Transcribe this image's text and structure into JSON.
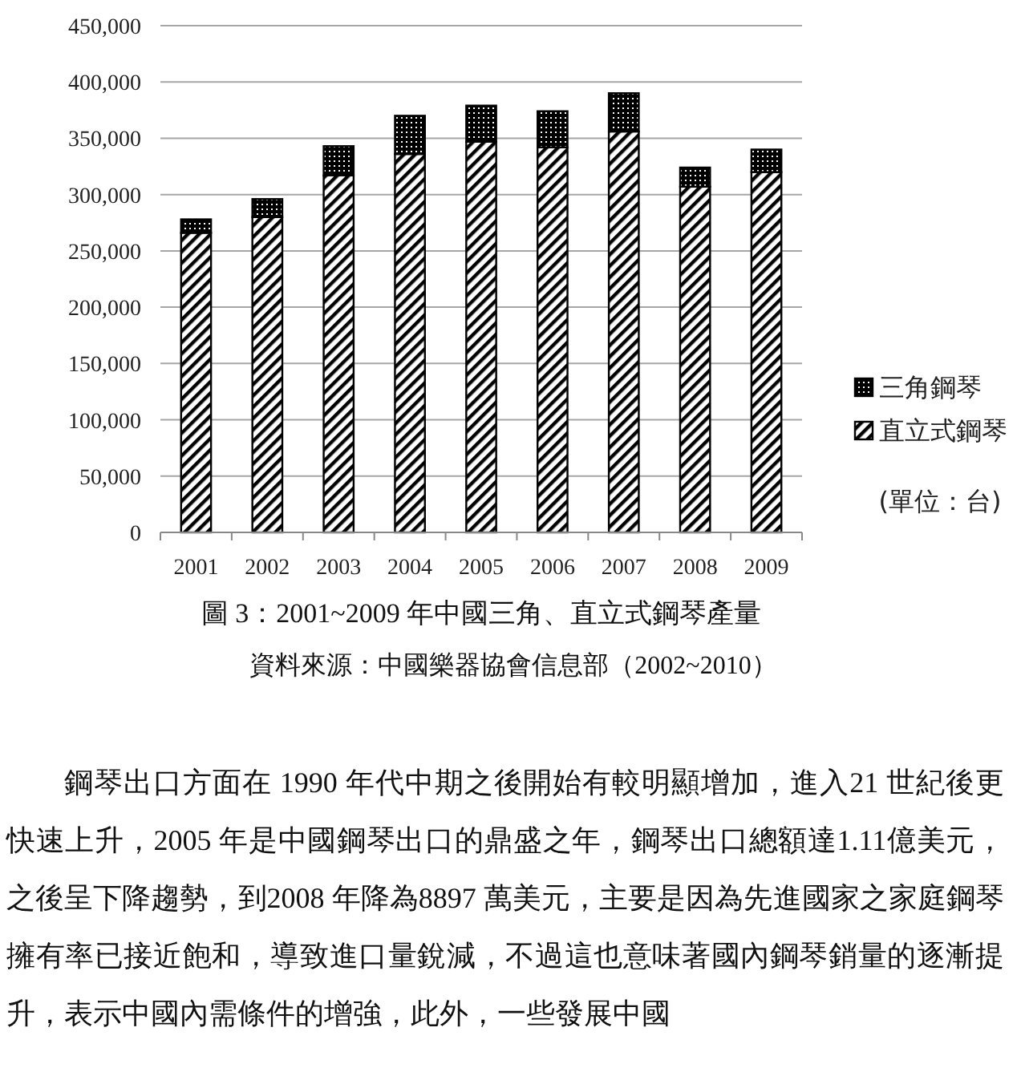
{
  "chart_data": {
    "type": "bar",
    "stacked": true,
    "title": "圖 3：2001~2009 年中國三角、直立式鋼琴產量",
    "categories": [
      "2001",
      "2002",
      "2003",
      "2004",
      "2005",
      "2006",
      "2007",
      "2008",
      "2009"
    ],
    "series": [
      {
        "name": "直立式鋼琴",
        "color": "#000000",
        "values": [
          266000,
          280000,
          317000,
          336000,
          347000,
          342000,
          356000,
          307000,
          320000
        ]
      },
      {
        "name": "三角鋼琴",
        "color": "#000000",
        "values": [
          12000,
          16000,
          26000,
          34000,
          32000,
          32000,
          34000,
          17000,
          20000
        ]
      }
    ],
    "ylim": [
      0,
      450000
    ],
    "yticks": [
      {
        "value": 0,
        "label": "0"
      },
      {
        "value": 50000,
        "label": "50,000"
      },
      {
        "value": 100000,
        "label": "100,000"
      },
      {
        "value": 150000,
        "label": "150,000"
      },
      {
        "value": 200000,
        "label": "200,000"
      },
      {
        "value": 250000,
        "label": "250,000"
      },
      {
        "value": 300000,
        "label": "300,000"
      },
      {
        "value": 350000,
        "label": "350,000"
      },
      {
        "value": 400000,
        "label": "400,000"
      },
      {
        "value": 450000,
        "label": "450,000"
      }
    ],
    "grid": "y",
    "legend": "right",
    "annotations": [
      "(單位：台)",
      "資料來源：中國樂器協會信息部（2002~2010）",
      "鋼琴出口方面在 1990 年代中期之後開始有較明顯增加，進入21 世紀後更快速上升，2005 年是中國鋼琴出口的鼎盛之年，鋼琴出口總額達1.11億美元，之後呈下降趨勢，到2008 年降為8897 萬美元，主要是因為先進國家之家庭鋼琴擁有率已接近飽和，導致進口量銳減，不過這也意味著國內鋼琴銷量的逐漸提升，表示中國內需條件的增強，此外，一些發展中國"
    ]
  }
}
